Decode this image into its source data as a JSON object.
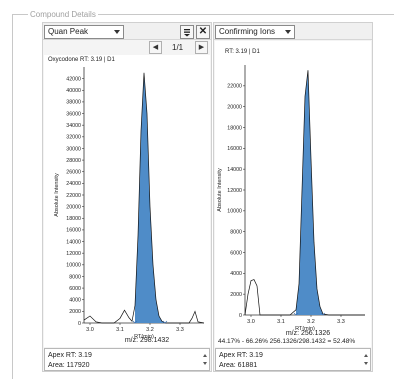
{
  "window": {
    "title": "Compound Details"
  },
  "left_panel": {
    "dropdown_value": "Quan Peak",
    "filter_button_icon": "filter-icon",
    "close_button_label": "✕",
    "page_indicator": "1/1",
    "chart_title": "Oxycodone  RT: 3.19 | D1",
    "mz_label": "m/z: 298.1432",
    "apex_rt": "Apex RT: 3.19",
    "area": "Area: 117920"
  },
  "right_panel": {
    "dropdown_value": "Confirming Ions",
    "chart_title": "RT: 3.19 | D1",
    "mz_label": "m/z: 256.1326",
    "ion_ratio": "44.17% - 66.26% 256.1326/298.1432 = 52.48%",
    "apex_rt": "Apex RT: 3.19",
    "area": "Area: 61881"
  },
  "chart_data": [
    {
      "type": "area",
      "title": "Oxycodone  RT: 3.19 | D1",
      "xlabel": "RT(min)",
      "ylabel": "Absolute Intensity",
      "xlim": [
        2.98,
        3.38
      ],
      "ylim": [
        0,
        44000
      ],
      "x_ticks": [
        3.0,
        3.1,
        3.2,
        3.3
      ],
      "x_tick_labels": [
        "3.0",
        "3.1",
        "3.2",
        "3.3"
      ],
      "y_ticks": [
        0,
        2000,
        4000,
        6000,
        8000,
        10000,
        12000,
        14000,
        16000,
        18000,
        20000,
        22000,
        24000,
        26000,
        28000,
        30000,
        32000,
        34000,
        36000,
        38000,
        40000,
        42000
      ],
      "y_tick_labels": [
        "0",
        "2000",
        "4000",
        "6000",
        "8000",
        "10000",
        "12000",
        "14000",
        "16000",
        "18000",
        "20000",
        "22000",
        "24000",
        "26000",
        "28000",
        "30000",
        "32000",
        "34000",
        "36000",
        "38000",
        "40000",
        "42000"
      ],
      "grid": false,
      "series": [
        {
          "x": [
            2.98,
            3.0,
            3.02,
            3.04,
            3.06,
            3.08,
            3.1,
            3.115,
            3.13,
            3.14,
            3.15,
            3.16,
            3.17,
            3.18,
            3.19,
            3.2,
            3.21,
            3.22,
            3.23,
            3.24,
            3.25,
            3.26,
            3.28,
            3.3,
            3.32,
            3.33,
            3.34,
            3.35,
            3.36,
            3.38
          ],
          "y": [
            500,
            1200,
            200,
            0,
            0,
            0,
            800,
            2200,
            900,
            300,
            3000,
            15000,
            33000,
            43000,
            36000,
            20000,
            10000,
            4000,
            1200,
            300,
            0,
            0,
            0,
            0,
            0,
            0,
            800,
            2000,
            200,
            0
          ]
        }
      ],
      "shaded_region": [
        3.15,
        3.25
      ],
      "fill_color": "#4f8cc8"
    },
    {
      "type": "area",
      "title": "RT: 3.19 | D1",
      "xlabel": "RT(min)",
      "ylabel": "Absolute Intensity",
      "xlim": [
        2.98,
        3.38
      ],
      "ylim": [
        0,
        24000
      ],
      "x_ticks": [
        3.0,
        3.1,
        3.2,
        3.3
      ],
      "x_tick_labels": [
        "3.0",
        "3.1",
        "3.2",
        "3.3"
      ],
      "y_ticks": [
        0,
        2000,
        4000,
        6000,
        8000,
        10000,
        12000,
        14000,
        16000,
        18000,
        20000,
        22000
      ],
      "y_tick_labels": [
        "0",
        "2000",
        "4000",
        "6000",
        "8000",
        "10000",
        "12000",
        "14000",
        "16000",
        "18000",
        "20000",
        "22000"
      ],
      "grid": false,
      "series": [
        {
          "x": [
            2.98,
            2.99,
            3.0,
            3.01,
            3.02,
            3.03,
            3.05,
            3.1,
            3.13,
            3.15,
            3.16,
            3.17,
            3.18,
            3.19,
            3.2,
            3.21,
            3.22,
            3.23,
            3.24,
            3.26,
            3.3,
            3.38
          ],
          "y": [
            0,
            2000,
            3300,
            3400,
            2800,
            0,
            0,
            0,
            0,
            500,
            3000,
            12000,
            21000,
            23500,
            15000,
            7000,
            2500,
            800,
            100,
            0,
            0,
            0
          ]
        }
      ],
      "shaded_region": [
        3.15,
        3.24
      ],
      "fill_color": "#4f8cc8"
    }
  ]
}
